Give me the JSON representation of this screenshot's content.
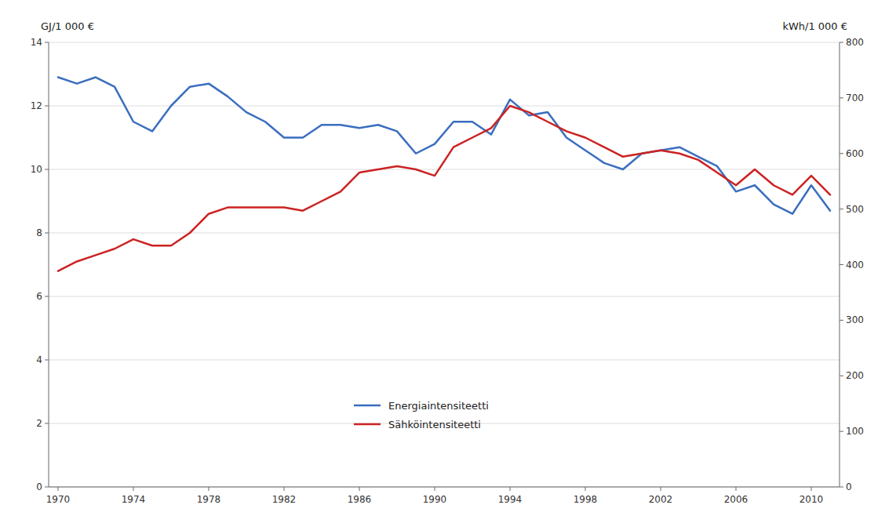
{
  "chart_data": {
    "type": "line",
    "ylabel": "GJ/1 000 €",
    "y2label": "kWh/1 000 €",
    "x": [
      1970,
      1971,
      1972,
      1973,
      1974,
      1975,
      1976,
      1977,
      1978,
      1979,
      1980,
      1981,
      1982,
      1983,
      1984,
      1985,
      1986,
      1987,
      1988,
      1989,
      1990,
      1991,
      1992,
      1993,
      1994,
      1995,
      1996,
      1997,
      1998,
      1999,
      2000,
      2001,
      2002,
      2003,
      2004,
      2005,
      2006,
      2007,
      2008,
      2009,
      2010,
      2011
    ],
    "series": [
      {
        "name": "Energiaintensiteetti",
        "color": "#3a6ebf",
        "values": [
          12.9,
          12.7,
          12.9,
          12.6,
          11.5,
          11.2,
          12.0,
          12.6,
          12.7,
          12.3,
          11.8,
          11.5,
          11.0,
          11.0,
          11.4,
          11.4,
          11.3,
          11.4,
          11.2,
          10.5,
          10.8,
          11.5,
          11.5,
          11.1,
          12.2,
          11.7,
          11.8,
          11.0,
          10.6,
          10.2,
          10.0,
          10.5,
          10.6,
          10.7,
          10.4,
          10.1,
          9.3,
          9.5,
          8.9,
          8.6,
          9.5,
          8.7
        ]
      },
      {
        "name": "Sähköintensiteetti",
        "color": "#cc2222",
        "values": [
          6.8,
          7.1,
          7.3,
          7.5,
          7.8,
          7.6,
          7.6,
          8.0,
          8.6,
          8.8,
          8.8,
          8.8,
          8.8,
          8.7,
          9.0,
          9.3,
          9.9,
          10.0,
          10.1,
          10.0,
          9.8,
          10.7,
          11.0,
          11.3,
          12.0,
          11.8,
          11.5,
          11.2,
          11.0,
          10.7,
          10.4,
          10.5,
          10.6,
          10.5,
          10.3,
          9.9,
          9.5,
          10.0,
          9.5,
          9.2,
          9.8,
          9.2
        ]
      }
    ],
    "xlim": [
      1969.5,
      2011.5
    ],
    "xticks": [
      1970,
      1974,
      1978,
      1982,
      1986,
      1990,
      1994,
      1998,
      2002,
      2006,
      2010
    ],
    "ylim": [
      0,
      14
    ],
    "yticks": [
      0,
      2,
      4,
      6,
      8,
      10,
      12,
      14
    ],
    "y2lim": [
      0,
      800
    ],
    "y2ticks": [
      0,
      100,
      200,
      300,
      400,
      500,
      600,
      700,
      800
    ],
    "grid": true,
    "legend": "bottom"
  }
}
